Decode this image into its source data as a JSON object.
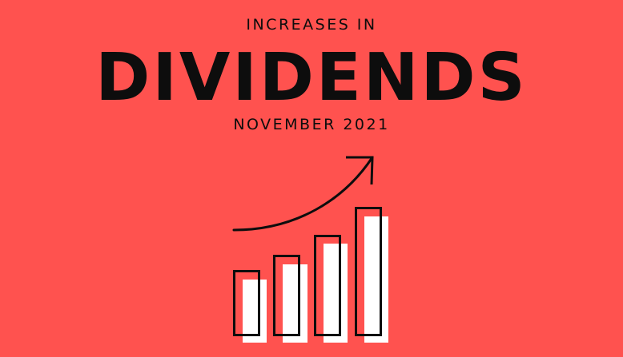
{
  "header": {
    "kicker": "INCREASES IN",
    "title": "DIVIDENDS",
    "date": "NOVEMBER 2021"
  },
  "illustration": {
    "icon": "rising-bar-chart-with-arrow-icon",
    "colors": {
      "background": "#ff524f",
      "outline": "#0d0d0d",
      "fill": "#ffffff"
    }
  }
}
